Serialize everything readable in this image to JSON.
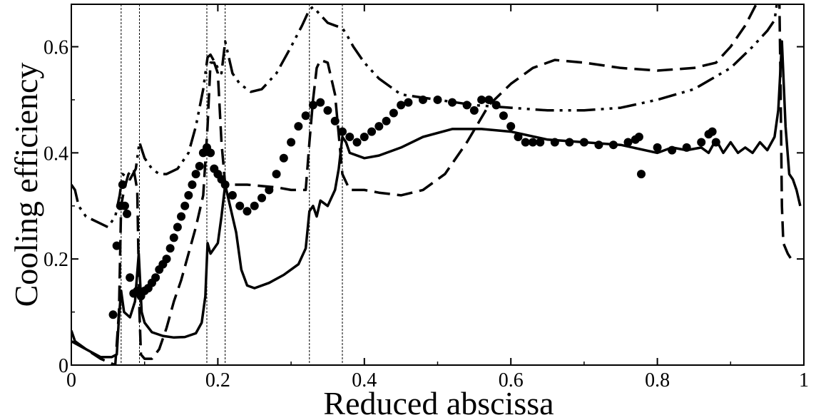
{
  "chart_data": {
    "type": "line",
    "title": "",
    "xlabel": "Reduced abscissa",
    "ylabel": "Cooling efficiency",
    "xlim": [
      0,
      1
    ],
    "ylim": [
      0,
      0.68
    ],
    "x_ticks": [
      0,
      0.2,
      0.4,
      0.6,
      0.8,
      1
    ],
    "x_tick_labels": [
      "0",
      "0.2",
      "0.4",
      "0.6",
      "0.8",
      "1"
    ],
    "y_ticks": [
      0,
      0.2,
      0.4,
      0.6
    ],
    "y_tick_labels": [
      "0",
      "0.2",
      "0.4",
      "0.6"
    ],
    "grid": false,
    "legend": "none",
    "vertical_reference_lines_x": [
      0.068,
      0.093,
      0.185,
      0.21,
      0.325,
      0.37
    ],
    "series": [
      {
        "style": "solid",
        "color": "#000000",
        "points": [
          [
            0,
            0.065
          ],
          [
            0.005,
            0.045
          ],
          [
            0.02,
            0.03
          ],
          [
            0.04,
            0.015
          ],
          [
            0.055,
            0.015
          ],
          [
            0.062,
            0.02
          ],
          [
            0.065,
            0.09
          ],
          [
            0.068,
            0.14
          ],
          [
            0.072,
            0.1
          ],
          [
            0.08,
            0.09
          ],
          [
            0.087,
            0.12
          ],
          [
            0.092,
            0.21
          ],
          [
            0.096,
            0.1
          ],
          [
            0.1,
            0.08
          ],
          [
            0.11,
            0.062
          ],
          [
            0.125,
            0.055
          ],
          [
            0.14,
            0.052
          ],
          [
            0.155,
            0.053
          ],
          [
            0.17,
            0.06
          ],
          [
            0.178,
            0.08
          ],
          [
            0.183,
            0.13
          ],
          [
            0.186,
            0.23
          ],
          [
            0.19,
            0.21
          ],
          [
            0.2,
            0.23
          ],
          [
            0.205,
            0.28
          ],
          [
            0.21,
            0.34
          ],
          [
            0.215,
            0.31
          ],
          [
            0.225,
            0.25
          ],
          [
            0.232,
            0.18
          ],
          [
            0.24,
            0.15
          ],
          [
            0.25,
            0.145
          ],
          [
            0.27,
            0.155
          ],
          [
            0.29,
            0.17
          ],
          [
            0.31,
            0.19
          ],
          [
            0.32,
            0.22
          ],
          [
            0.325,
            0.29
          ],
          [
            0.33,
            0.3
          ],
          [
            0.335,
            0.28
          ],
          [
            0.34,
            0.31
          ],
          [
            0.35,
            0.3
          ],
          [
            0.36,
            0.33
          ],
          [
            0.365,
            0.37
          ],
          [
            0.37,
            0.43
          ],
          [
            0.375,
            0.42
          ],
          [
            0.38,
            0.4
          ],
          [
            0.4,
            0.39
          ],
          [
            0.42,
            0.395
          ],
          [
            0.45,
            0.41
          ],
          [
            0.48,
            0.43
          ],
          [
            0.52,
            0.445
          ],
          [
            0.56,
            0.445
          ],
          [
            0.6,
            0.44
          ],
          [
            0.65,
            0.425
          ],
          [
            0.7,
            0.42
          ],
          [
            0.75,
            0.415
          ],
          [
            0.8,
            0.4
          ],
          [
            0.82,
            0.41
          ],
          [
            0.84,
            0.405
          ],
          [
            0.86,
            0.41
          ],
          [
            0.87,
            0.4
          ],
          [
            0.88,
            0.425
          ],
          [
            0.89,
            0.4
          ],
          [
            0.9,
            0.42
          ],
          [
            0.91,
            0.4
          ],
          [
            0.92,
            0.41
          ],
          [
            0.93,
            0.4
          ],
          [
            0.94,
            0.42
          ],
          [
            0.95,
            0.405
          ],
          [
            0.96,
            0.43
          ],
          [
            0.965,
            0.48
          ],
          [
            0.97,
            0.61
          ],
          [
            0.975,
            0.45
          ],
          [
            0.98,
            0.36
          ],
          [
            0.985,
            0.35
          ],
          [
            0.99,
            0.33
          ],
          [
            0.995,
            0.3
          ]
        ]
      },
      {
        "style": "dashed",
        "color": "#000000",
        "points": [
          [
            0,
            0.045
          ],
          [
            0.02,
            0.03
          ],
          [
            0.04,
            0.012
          ],
          [
            0.06,
            0.0
          ],
          [
            0.065,
            0.1
          ],
          [
            0.068,
            0.3
          ],
          [
            0.072,
            0.33
          ],
          [
            0.078,
            0.36
          ],
          [
            0.085,
            0.37
          ],
          [
            0.09,
            0.33
          ],
          [
            0.093,
            0.1
          ],
          [
            0.095,
            0.02
          ],
          [
            0.1,
            0.012
          ],
          [
            0.11,
            0.012
          ],
          [
            0.12,
            0.03
          ],
          [
            0.13,
            0.07
          ],
          [
            0.14,
            0.12
          ],
          [
            0.15,
            0.16
          ],
          [
            0.16,
            0.21
          ],
          [
            0.17,
            0.26
          ],
          [
            0.18,
            0.32
          ],
          [
            0.186,
            0.45
          ],
          [
            0.19,
            0.57
          ],
          [
            0.195,
            0.57
          ],
          [
            0.2,
            0.55
          ],
          [
            0.205,
            0.42
          ],
          [
            0.21,
            0.34
          ],
          [
            0.24,
            0.34
          ],
          [
            0.28,
            0.335
          ],
          [
            0.3,
            0.33
          ],
          [
            0.32,
            0.33
          ],
          [
            0.325,
            0.42
          ],
          [
            0.33,
            0.5
          ],
          [
            0.335,
            0.56
          ],
          [
            0.34,
            0.575
          ],
          [
            0.35,
            0.57
          ],
          [
            0.36,
            0.51
          ],
          [
            0.37,
            0.36
          ],
          [
            0.38,
            0.33
          ],
          [
            0.4,
            0.33
          ],
          [
            0.42,
            0.325
          ],
          [
            0.45,
            0.32
          ],
          [
            0.48,
            0.33
          ],
          [
            0.51,
            0.36
          ],
          [
            0.54,
            0.42
          ],
          [
            0.57,
            0.49
          ],
          [
            0.6,
            0.53
          ],
          [
            0.63,
            0.56
          ],
          [
            0.66,
            0.575
          ],
          [
            0.7,
            0.57
          ],
          [
            0.75,
            0.56
          ],
          [
            0.8,
            0.555
          ],
          [
            0.85,
            0.56
          ],
          [
            0.88,
            0.57
          ],
          [
            0.9,
            0.6
          ],
          [
            0.92,
            0.64
          ],
          [
            0.935,
            0.68
          ],
          [
            0.945,
            0.7
          ],
          [
            0.955,
            0.75
          ],
          [
            0.962,
            0.8
          ],
          [
            0.966,
            0.74
          ],
          [
            0.968,
            0.55
          ],
          [
            0.97,
            0.3
          ],
          [
            0.972,
            0.23
          ],
          [
            0.978,
            0.21
          ],
          [
            0.985,
            0.195
          ]
        ]
      },
      {
        "style": "dash-dot-dot",
        "color": "#000000",
        "points": [
          [
            0,
            0.34
          ],
          [
            0.005,
            0.33
          ],
          [
            0.01,
            0.3
          ],
          [
            0.02,
            0.28
          ],
          [
            0.035,
            0.27
          ],
          [
            0.05,
            0.26
          ],
          [
            0.06,
            0.28
          ],
          [
            0.066,
            0.32
          ],
          [
            0.07,
            0.36
          ],
          [
            0.08,
            0.35
          ],
          [
            0.088,
            0.37
          ],
          [
            0.093,
            0.42
          ],
          [
            0.1,
            0.39
          ],
          [
            0.11,
            0.37
          ],
          [
            0.12,
            0.36
          ],
          [
            0.13,
            0.36
          ],
          [
            0.145,
            0.37
          ],
          [
            0.16,
            0.4
          ],
          [
            0.17,
            0.45
          ],
          [
            0.18,
            0.52
          ],
          [
            0.186,
            0.58
          ],
          [
            0.19,
            0.585
          ],
          [
            0.2,
            0.56
          ],
          [
            0.205,
            0.55
          ],
          [
            0.21,
            0.61
          ],
          [
            0.215,
            0.58
          ],
          [
            0.22,
            0.55
          ],
          [
            0.23,
            0.53
          ],
          [
            0.245,
            0.515
          ],
          [
            0.26,
            0.52
          ],
          [
            0.28,
            0.55
          ],
          [
            0.3,
            0.6
          ],
          [
            0.315,
            0.64
          ],
          [
            0.325,
            0.67
          ],
          [
            0.33,
            0.675
          ],
          [
            0.34,
            0.66
          ],
          [
            0.35,
            0.645
          ],
          [
            0.36,
            0.64
          ],
          [
            0.37,
            0.635
          ],
          [
            0.375,
            0.625
          ],
          [
            0.385,
            0.6
          ],
          [
            0.4,
            0.57
          ],
          [
            0.42,
            0.54
          ],
          [
            0.45,
            0.51
          ],
          [
            0.5,
            0.5
          ],
          [
            0.55,
            0.49
          ],
          [
            0.6,
            0.485
          ],
          [
            0.65,
            0.48
          ],
          [
            0.7,
            0.48
          ],
          [
            0.75,
            0.485
          ],
          [
            0.8,
            0.5
          ],
          [
            0.85,
            0.52
          ],
          [
            0.9,
            0.56
          ],
          [
            0.93,
            0.6
          ],
          [
            0.95,
            0.63
          ],
          [
            0.96,
            0.65
          ],
          [
            0.965,
            0.7
          ]
        ]
      },
      {
        "style": "markers",
        "marker": "filled-circle",
        "color": "#000000",
        "points": [
          [
            0.057,
            0.095
          ],
          [
            0.062,
            0.225
          ],
          [
            0.067,
            0.3
          ],
          [
            0.07,
            0.34
          ],
          [
            0.073,
            0.3
          ],
          [
            0.076,
            0.285
          ],
          [
            0.08,
            0.165
          ],
          [
            0.085,
            0.135
          ],
          [
            0.09,
            0.14
          ],
          [
            0.095,
            0.13
          ],
          [
            0.1,
            0.14
          ],
          [
            0.105,
            0.145
          ],
          [
            0.11,
            0.155
          ],
          [
            0.115,
            0.165
          ],
          [
            0.12,
            0.18
          ],
          [
            0.125,
            0.19
          ],
          [
            0.13,
            0.2
          ],
          [
            0.135,
            0.22
          ],
          [
            0.14,
            0.24
          ],
          [
            0.145,
            0.26
          ],
          [
            0.15,
            0.28
          ],
          [
            0.155,
            0.3
          ],
          [
            0.16,
            0.32
          ],
          [
            0.165,
            0.34
          ],
          [
            0.17,
            0.36
          ],
          [
            0.175,
            0.375
          ],
          [
            0.18,
            0.4
          ],
          [
            0.185,
            0.41
          ],
          [
            0.19,
            0.4
          ],
          [
            0.195,
            0.37
          ],
          [
            0.2,
            0.36
          ],
          [
            0.205,
            0.35
          ],
          [
            0.21,
            0.34
          ],
          [
            0.22,
            0.32
          ],
          [
            0.23,
            0.3
          ],
          [
            0.24,
            0.29
          ],
          [
            0.25,
            0.3
          ],
          [
            0.26,
            0.315
          ],
          [
            0.27,
            0.33
          ],
          [
            0.28,
            0.36
          ],
          [
            0.29,
            0.39
          ],
          [
            0.3,
            0.42
          ],
          [
            0.31,
            0.45
          ],
          [
            0.32,
            0.47
          ],
          [
            0.33,
            0.49
          ],
          [
            0.34,
            0.495
          ],
          [
            0.35,
            0.48
          ],
          [
            0.36,
            0.46
          ],
          [
            0.37,
            0.44
          ],
          [
            0.38,
            0.43
          ],
          [
            0.39,
            0.42
          ],
          [
            0.4,
            0.43
          ],
          [
            0.41,
            0.44
          ],
          [
            0.42,
            0.45
          ],
          [
            0.43,
            0.46
          ],
          [
            0.44,
            0.475
          ],
          [
            0.45,
            0.49
          ],
          [
            0.46,
            0.495
          ],
          [
            0.48,
            0.5
          ],
          [
            0.5,
            0.5
          ],
          [
            0.52,
            0.495
          ],
          [
            0.54,
            0.49
          ],
          [
            0.55,
            0.48
          ],
          [
            0.56,
            0.5
          ],
          [
            0.57,
            0.5
          ],
          [
            0.58,
            0.49
          ],
          [
            0.59,
            0.47
          ],
          [
            0.6,
            0.45
          ],
          [
            0.61,
            0.43
          ],
          [
            0.62,
            0.42
          ],
          [
            0.63,
            0.42
          ],
          [
            0.64,
            0.42
          ],
          [
            0.66,
            0.42
          ],
          [
            0.68,
            0.42
          ],
          [
            0.7,
            0.42
          ],
          [
            0.72,
            0.415
          ],
          [
            0.74,
            0.415
          ],
          [
            0.76,
            0.42
          ],
          [
            0.77,
            0.425
          ],
          [
            0.775,
            0.43
          ],
          [
            0.778,
            0.36
          ],
          [
            0.8,
            0.41
          ],
          [
            0.82,
            0.405
          ],
          [
            0.84,
            0.41
          ],
          [
            0.86,
            0.42
          ],
          [
            0.87,
            0.435
          ],
          [
            0.875,
            0.44
          ],
          [
            0.88,
            0.42
          ]
        ]
      }
    ]
  }
}
